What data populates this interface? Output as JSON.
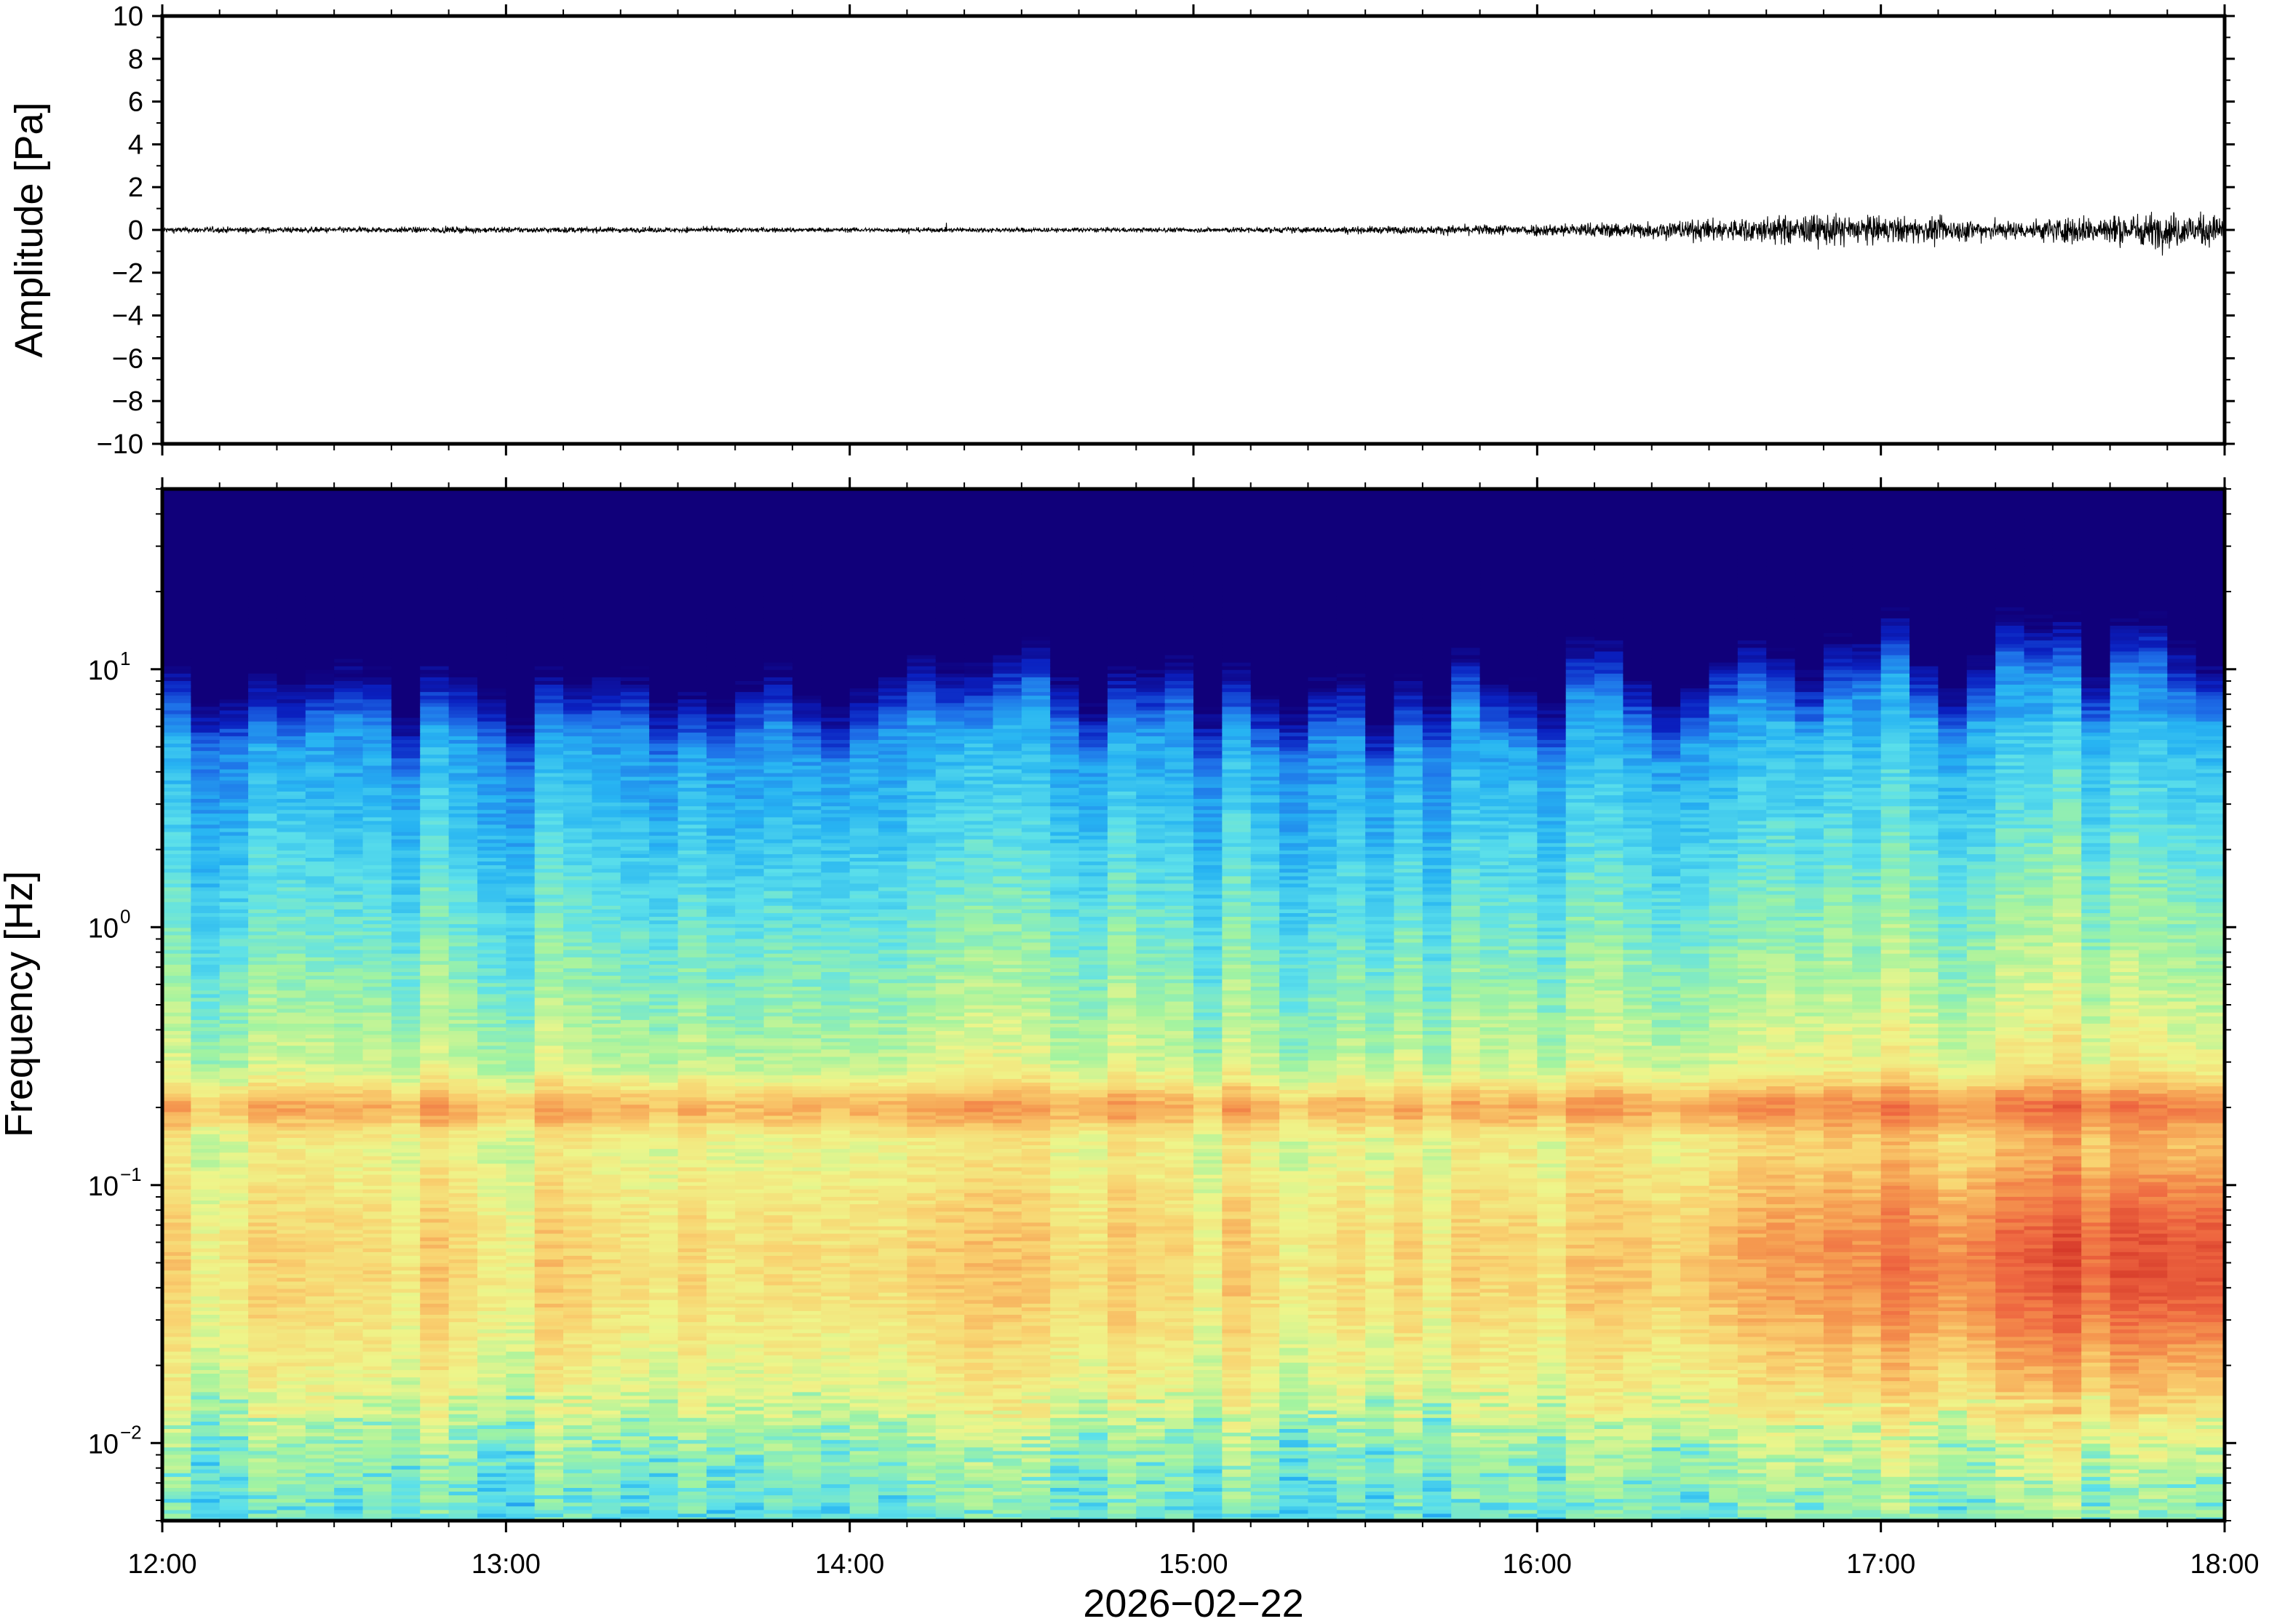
{
  "chart_data": [
    {
      "type": "line",
      "panel": "waveform",
      "ylabel": "Amplitude [Pa]",
      "ylim": [
        -10,
        10
      ],
      "y_ticks": [
        "10",
        "8",
        "6",
        "4",
        "2",
        "0",
        "−2",
        "−4",
        "−6",
        "−8",
        "−10"
      ],
      "xlim": [
        "2026-02-22 12:00",
        "2026-02-22 18:00"
      ],
      "trace_color": "#000000",
      "envelope": {
        "times": [
          "12:00",
          "13:00",
          "14:00",
          "15:00",
          "15:40",
          "16:15",
          "16:30",
          "16:50",
          "17:00",
          "17:25",
          "17:30",
          "17:50",
          "18:00"
        ],
        "amplitude": [
          0.15,
          0.15,
          0.12,
          0.12,
          0.2,
          0.4,
          0.55,
          0.8,
          0.7,
          0.45,
          0.65,
          0.9,
          0.75
        ]
      }
    },
    {
      "type": "heatmap",
      "panel": "spectrogram",
      "ylabel": "Frequency [Hz]",
      "yscale": "log",
      "ylim": [
        0.005,
        50
      ],
      "y_ticks": [
        {
          "value": 10,
          "base": "10",
          "exp": "1"
        },
        {
          "value": 1,
          "base": "10",
          "exp": "0"
        },
        {
          "value": 0.1,
          "base": "10",
          "exp": "−1"
        },
        {
          "value": 0.01,
          "base": "10",
          "exp": "−2"
        }
      ],
      "x_ticks": [
        "12:00",
        "13:00",
        "14:00",
        "15:00",
        "16:00",
        "17:00",
        "18:00"
      ],
      "xlabel": "2026−02−22",
      "colormap": [
        "#10007a",
        "#0a20c0",
        "#1e6fe8",
        "#27b4f2",
        "#5ce0ea",
        "#a2f3a0",
        "#eef58a",
        "#f9d270",
        "#f59a50",
        "#ee6640",
        "#d63a2a"
      ],
      "microseism_band_hz": 0.2,
      "notes_visible": false
    }
  ]
}
